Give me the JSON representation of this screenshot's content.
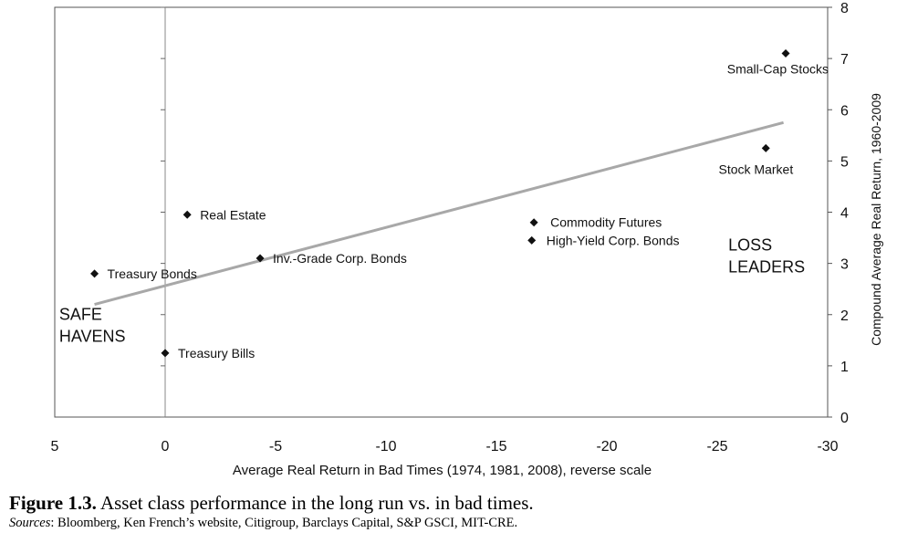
{
  "chart_data": {
    "type": "scatter",
    "xlabel": "Average Real Return in Bad Times (1974, 1981, 2008), reverse scale",
    "ylabel": "Compound Average Real Return, 1960-2009",
    "xlim": [
      5,
      -30
    ],
    "ylim": [
      0,
      8
    ],
    "x_reversed": true,
    "x_ticks": [
      5,
      0,
      -5,
      -10,
      -15,
      -20,
      -25,
      -30
    ],
    "x_tick_labels": [
      "5",
      "0",
      "-5",
      "-10",
      "-15",
      "-20",
      "-25",
      "-30"
    ],
    "y_ticks": [
      0,
      1,
      2,
      3,
      4,
      5,
      6,
      7,
      8
    ],
    "y_tick_labels": [
      "0",
      "1",
      "2",
      "3",
      "4",
      "5",
      "6",
      "7",
      "8"
    ],
    "y_axis_side": "right",
    "grid": false,
    "points": [
      {
        "label": "Small-Cap Stocks",
        "x": -28.1,
        "y": 7.1
      },
      {
        "label": "Stock Market",
        "x": -27.2,
        "y": 5.25
      },
      {
        "label": "Real Estate",
        "x": -1.0,
        "y": 3.95
      },
      {
        "label": "Commodity Futures",
        "x": -16.7,
        "y": 3.8
      },
      {
        "label": "High-Yield Corp. Bonds",
        "x": -16.6,
        "y": 3.45
      },
      {
        "label": "Inv.-Grade Corp. Bonds",
        "x": -4.3,
        "y": 3.1
      },
      {
        "label": "Treasury Bonds",
        "x": 3.2,
        "y": 2.8
      },
      {
        "label": "Treasury Bills",
        "x": 0.0,
        "y": 1.25
      }
    ],
    "trendline": {
      "x": [
        3.2,
        -28.0
      ],
      "y": [
        2.2,
        5.75
      ]
    },
    "annotations": [
      {
        "lines": [
          "SAFE",
          "HAVENS"
        ],
        "x": 4.8,
        "y": 1.65
      },
      {
        "lines": [
          "LOSS",
          "LEADERS"
        ],
        "x": -25.5,
        "y": 3.0
      }
    ]
  },
  "caption": {
    "figure_label": "Figure 1.3.",
    "title": "Asset class performance in the long run vs. in bad times.",
    "sources_label": "Sources",
    "sources_text": ": Bloomberg, Ken French’s website, Citigroup, Barclays Capital, S&P GSCI, MIT-CRE."
  }
}
